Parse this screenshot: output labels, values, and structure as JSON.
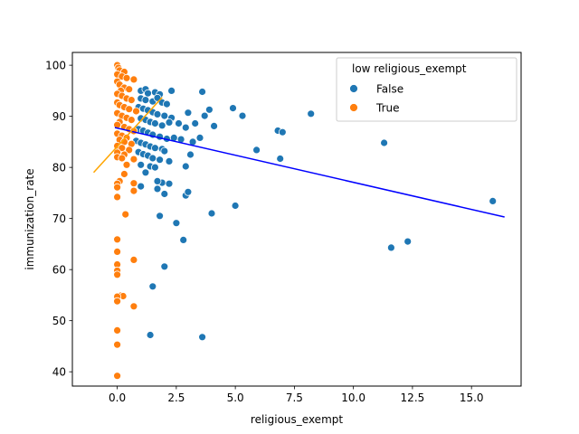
{
  "chart_data": {
    "type": "scatter",
    "title": "",
    "xlabel": "religious_exempt",
    "ylabel": "immunization_rate",
    "xlim": [
      -1.9,
      17.1
    ],
    "ylim": [
      37.2,
      102.5
    ],
    "xticks": [
      0.0,
      2.5,
      5.0,
      7.5,
      10.0,
      12.5,
      15.0
    ],
    "xtick_labels": [
      "0.0",
      "2.5",
      "5.0",
      "7.5",
      "10.0",
      "12.5",
      "15.0"
    ],
    "yticks": [
      40,
      50,
      60,
      70,
      80,
      90,
      100
    ],
    "ytick_labels": [
      "40",
      "50",
      "60",
      "70",
      "80",
      "90",
      "100"
    ],
    "grid": false,
    "legend": {
      "placement": "top-right",
      "title": "low religious_exempt",
      "entries": [
        "False",
        "True"
      ]
    },
    "series": [
      {
        "name": "False",
        "color": "#1f77b4",
        "points": [
          [
            1.0,
            95.0
          ],
          [
            1.2,
            95.3
          ],
          [
            1.3,
            94.5
          ],
          [
            1.6,
            94.7
          ],
          [
            1.8,
            94.3
          ],
          [
            2.3,
            95.0
          ],
          [
            1.0,
            93.5
          ],
          [
            1.2,
            93.2
          ],
          [
            1.5,
            92.9
          ],
          [
            1.7,
            93.6
          ],
          [
            1.9,
            92.7
          ],
          [
            2.1,
            92.4
          ],
          [
            0.9,
            91.8
          ],
          [
            1.1,
            91.5
          ],
          [
            1.3,
            91.2
          ],
          [
            1.5,
            90.8
          ],
          [
            1.7,
            90.4
          ],
          [
            2.0,
            90.1
          ],
          [
            2.3,
            89.7
          ],
          [
            1.0,
            89.6
          ],
          [
            1.2,
            89.3
          ],
          [
            1.4,
            88.9
          ],
          [
            1.6,
            88.6
          ],
          [
            1.9,
            88.2
          ],
          [
            2.2,
            88.8
          ],
          [
            2.6,
            88.6
          ],
          [
            2.9,
            87.8
          ],
          [
            0.9,
            87.5
          ],
          [
            1.1,
            87.2
          ],
          [
            1.3,
            86.8
          ],
          [
            1.5,
            86.4
          ],
          [
            1.8,
            86.0
          ],
          [
            2.1,
            85.6
          ],
          [
            2.4,
            85.8
          ],
          [
            2.7,
            85.5
          ],
          [
            0.8,
            85.2
          ],
          [
            1.0,
            84.8
          ],
          [
            1.2,
            84.5
          ],
          [
            1.4,
            84.1
          ],
          [
            1.6,
            83.8
          ],
          [
            1.9,
            83.6
          ],
          [
            2.0,
            83.2
          ],
          [
            0.9,
            83.0
          ],
          [
            1.1,
            82.6
          ],
          [
            1.3,
            82.3
          ],
          [
            1.5,
            81.8
          ],
          [
            1.8,
            81.5
          ],
          [
            2.2,
            81.2
          ],
          [
            1.0,
            80.5
          ],
          [
            1.4,
            80.2
          ],
          [
            1.6,
            80.0
          ],
          [
            1.2,
            79.0
          ],
          [
            1.7,
            75.8
          ],
          [
            1.9,
            77.0
          ],
          [
            2.2,
            76.8
          ],
          [
            1.0,
            76.3
          ],
          [
            3.6,
            94.8
          ],
          [
            3.0,
            90.7
          ],
          [
            3.7,
            90.1
          ],
          [
            3.9,
            91.3
          ],
          [
            3.3,
            88.6
          ],
          [
            4.1,
            88.1
          ],
          [
            3.2,
            85.0
          ],
          [
            3.5,
            85.8
          ],
          [
            3.1,
            82.5
          ],
          [
            2.9,
            80.2
          ],
          [
            2.9,
            74.5
          ],
          [
            3.0,
            75.2
          ],
          [
            2.0,
            74.8
          ],
          [
            1.7,
            77.3
          ],
          [
            1.8,
            70.5
          ],
          [
            2.5,
            69.1
          ],
          [
            2.8,
            65.8
          ],
          [
            4.0,
            71.0
          ],
          [
            5.0,
            72.5
          ],
          [
            5.3,
            90.1
          ],
          [
            4.9,
            91.6
          ],
          [
            5.9,
            83.4
          ],
          [
            6.8,
            87.2
          ],
          [
            7.0,
            86.9
          ],
          [
            6.9,
            81.7
          ],
          [
            8.2,
            90.5
          ],
          [
            11.3,
            84.8
          ],
          [
            11.6,
            64.3
          ],
          [
            12.3,
            65.5
          ],
          [
            15.9,
            73.4
          ],
          [
            2.0,
            60.6
          ],
          [
            1.5,
            56.7
          ],
          [
            1.4,
            47.2
          ],
          [
            3.6,
            46.8
          ]
        ]
      },
      {
        "name": "True",
        "color": "#ff7f0e",
        "points": [
          [
            0.0,
            100.0
          ],
          [
            0.05,
            99.5
          ],
          [
            0.1,
            99.0
          ],
          [
            0.3,
            98.7
          ],
          [
            0.0,
            98.2
          ],
          [
            0.2,
            97.8
          ],
          [
            0.4,
            97.5
          ],
          [
            0.7,
            97.2
          ],
          [
            0.0,
            96.8
          ],
          [
            0.1,
            96.2
          ],
          [
            0.3,
            95.6
          ],
          [
            0.5,
            95.3
          ],
          [
            0.15,
            95.0
          ],
          [
            0.0,
            94.4
          ],
          [
            0.2,
            94.0
          ],
          [
            0.4,
            93.5
          ],
          [
            0.6,
            93.2
          ],
          [
            0.0,
            92.7
          ],
          [
            0.1,
            92.2
          ],
          [
            0.3,
            91.8
          ],
          [
            0.5,
            91.4
          ],
          [
            0.8,
            91.0
          ],
          [
            0.0,
            90.6
          ],
          [
            0.2,
            90.1
          ],
          [
            0.4,
            89.7
          ],
          [
            0.6,
            89.3
          ],
          [
            0.1,
            88.9
          ],
          [
            0.0,
            88.3
          ],
          [
            0.3,
            87.9
          ],
          [
            0.5,
            87.5
          ],
          [
            0.7,
            87.1
          ],
          [
            0.0,
            86.6
          ],
          [
            0.2,
            86.2
          ],
          [
            0.4,
            85.8
          ],
          [
            0.1,
            85.4
          ],
          [
            0.3,
            85.0
          ],
          [
            0.6,
            84.6
          ],
          [
            0.0,
            84.2
          ],
          [
            0.2,
            83.8
          ],
          [
            0.5,
            83.4
          ],
          [
            0.0,
            82.9
          ],
          [
            0.3,
            82.5
          ],
          [
            0.0,
            82.0
          ],
          [
            0.2,
            81.8
          ],
          [
            0.7,
            81.6
          ],
          [
            0.4,
            80.5
          ],
          [
            0.3,
            78.7
          ],
          [
            0.1,
            77.3
          ],
          [
            0.0,
            76.8
          ],
          [
            0.0,
            76.1
          ],
          [
            0.7,
            76.9
          ],
          [
            0.7,
            75.4
          ],
          [
            0.0,
            74.2
          ],
          [
            0.35,
            70.8
          ],
          [
            0.0,
            65.9
          ],
          [
            0.0,
            63.5
          ],
          [
            0.7,
            61.9
          ],
          [
            0.0,
            61.0
          ],
          [
            0.0,
            59.8
          ],
          [
            0.0,
            59.0
          ],
          [
            0.15,
            54.9
          ],
          [
            0.25,
            54.8
          ],
          [
            0.0,
            54.7
          ],
          [
            0.0,
            53.8
          ],
          [
            0.7,
            52.8
          ],
          [
            0.0,
            48.1
          ],
          [
            0.0,
            45.3
          ],
          [
            0.0,
            39.2
          ]
        ]
      }
    ],
    "regression_lines": [
      {
        "series": "all",
        "color": "#0000ff",
        "x": [
          -0.1,
          16.4
        ],
        "y": [
          87.8,
          70.3
        ]
      },
      {
        "series": "True",
        "color": "#ffa500",
        "x": [
          -1.0,
          1.9
        ],
        "y": [
          79.0,
          93.7
        ]
      }
    ]
  }
}
